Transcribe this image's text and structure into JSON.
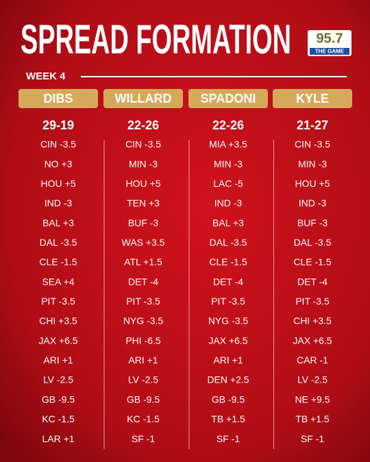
{
  "header": {
    "title": "SPREAD FORMATION",
    "logo_number": "95.7",
    "logo_text": "THE GAME",
    "week": "WEEK 4"
  },
  "columns": [
    {
      "name": "DIBS",
      "record": "29-19",
      "picks": [
        "CIN -3.5",
        "NO +3",
        "HOU +5",
        "IND -3",
        "BAL +3",
        "DAL -3.5",
        "CLE -1.5",
        "SEA +4",
        "PIT -3.5",
        "CHI +3.5",
        "JAX +6.5",
        "ARI +1",
        "LV -2.5",
        "GB -9.5",
        "KC -1.5",
        "LAR +1"
      ]
    },
    {
      "name": "WILLARD",
      "record": "22-26",
      "picks": [
        "CIN -3.5",
        "MIN -3",
        "HOU +5",
        "TEN +3",
        "BUF -3",
        "WAS +3.5",
        "ATL +1.5",
        "DET -4",
        "PIT -3.5",
        "NYG -3.5",
        "PHI -6.5",
        "ARI +1",
        "LV -2.5",
        "GB -9.5",
        "KC -1.5",
        "SF -1"
      ]
    },
    {
      "name": "SPADONI",
      "record": "22-26",
      "picks": [
        "MIA +3.5",
        "MIN -3",
        "LAC -5",
        "IND -3",
        "BAL +3",
        "DAL -3.5",
        "CLE -1.5",
        "DET -4",
        "PIT -3.5",
        "NYG -3.5",
        "JAX +6.5",
        "ARI +1",
        "DEN +2.5",
        "GB -9.5",
        "TB +1.5",
        "SF -1"
      ]
    },
    {
      "name": "KYLE",
      "record": "21-27",
      "picks": [
        "CIN -3.5",
        "MIN -3",
        "HOU +5",
        "IND -3",
        "BUF -3",
        "DAL -3.5",
        "CLE -1.5",
        "DET -4",
        "PIT -3.5",
        "CHI +3.5",
        "JAX +6.5",
        "CAR -1",
        "LV -2.5",
        "NE +9.5",
        "TB +1.5",
        "SF -1"
      ]
    }
  ]
}
